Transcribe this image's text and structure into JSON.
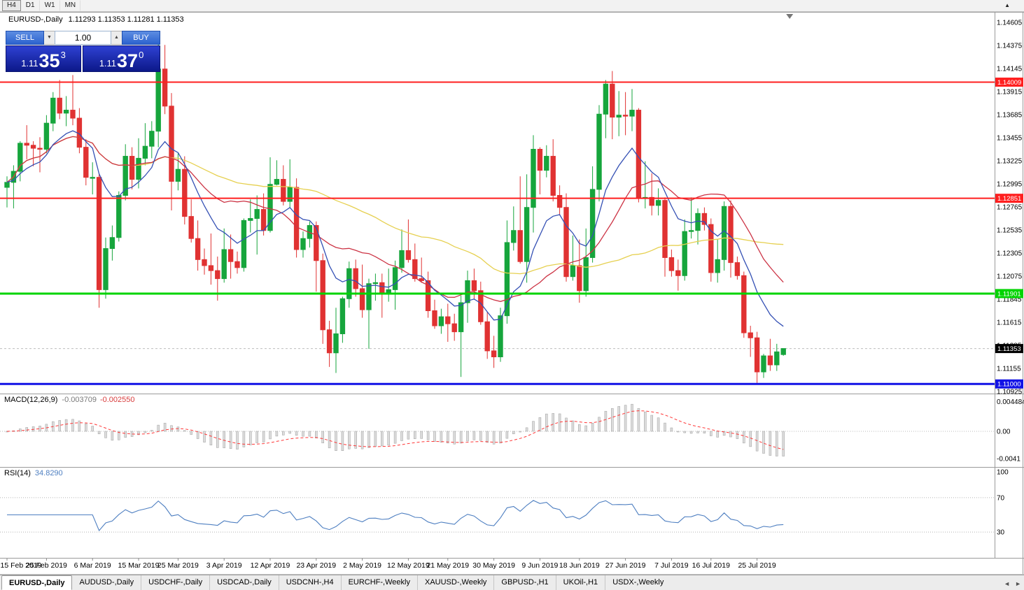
{
  "toolbar": {
    "timeframes": [
      {
        "label": "H4",
        "active": true
      },
      {
        "label": "D1",
        "active": false
      },
      {
        "label": "W1",
        "active": false
      },
      {
        "label": "MN",
        "active": false
      }
    ]
  },
  "icons": {
    "collapse": "▲",
    "spin_down": "▼",
    "spin_up": "▲",
    "tab_prev": "◄",
    "tab_next": "►"
  },
  "chart": {
    "title": "EURUSD-,Daily",
    "ohlc": "1.11293 1.11353 1.11281 1.11353"
  },
  "trade_panel": {
    "sell_label": "SELL",
    "buy_label": "BUY",
    "volume": "1.00",
    "sell_price": {
      "base": "1.11",
      "big": "35",
      "sup": "3"
    },
    "buy_price": {
      "base": "1.11",
      "big": "37",
      "sup": "0"
    }
  },
  "macd": {
    "label": "MACD(12,26,9)",
    "value_main": "-0.003709",
    "value_signal": "-0.002550",
    "scale": [
      "0.004484",
      "0.00",
      "-0.0041"
    ],
    "params": [
      12,
      26,
      9
    ]
  },
  "rsi": {
    "label": "RSI(14)",
    "value": "34.8290",
    "scale": [
      "100",
      "70",
      "30"
    ],
    "levels": [
      70,
      30
    ],
    "period": 14
  },
  "tabs": {
    "items": [
      {
        "label": "EURUSD-,Daily",
        "active": true
      },
      {
        "label": "AUDUSD-,Daily",
        "active": false
      },
      {
        "label": "USDCHF-,Daily",
        "active": false
      },
      {
        "label": "USDCAD-,Daily",
        "active": false
      },
      {
        "label": "USDCNH-,H4",
        "active": false
      },
      {
        "label": "EURCHF-,Weekly",
        "active": false
      },
      {
        "label": "XAUUSD-,Weekly",
        "active": false
      },
      {
        "label": "GBPUSD-,H1",
        "active": false
      },
      {
        "label": "UKOil-,H1",
        "active": false
      },
      {
        "label": "USDX-,Weekly",
        "active": false
      }
    ]
  },
  "colors": {
    "bull": "#16a53c",
    "bear": "#e03232",
    "ma_fast": "#3450b4",
    "ma_mid": "#cc3344",
    "ma_slow": "#e6d050",
    "hline_red": "#ff1f1f",
    "hline_green": "#00d400",
    "hline_blue": "#1212e6",
    "bid_line": "#bdbdbd",
    "bid_badge": "#000000",
    "macd_hist_fill": "#dcdcdc",
    "macd_hist_stroke": "#9f9f9f",
    "macd_signal": "#ff3838",
    "rsi_line": "#4e7fc1",
    "level_dotted": "#b4b4b4",
    "separator": "#9a9a9a"
  },
  "chart_data": {
    "type": "candlestick",
    "symbol": "EURUSD-",
    "timeframe": "Daily",
    "title": "EURUSD-,Daily",
    "y_range": [
      1.10925,
      1.14605
    ],
    "y_ticks": [
      1.14605,
      1.14375,
      1.14145,
      1.13915,
      1.13685,
      1.13455,
      1.13225,
      1.12995,
      1.12765,
      1.12535,
      1.12305,
      1.12075,
      1.11845,
      1.11615,
      1.11385,
      1.11155,
      1.10925
    ],
    "x_tick_labels": [
      "15 Feb 2019",
      "25 Feb 2019",
      "6 Mar 2019",
      "15 Mar 2019",
      "25 Mar 2019",
      "3 Apr 2019",
      "12 Apr 2019",
      "23 Apr 2019",
      "2 May 2019",
      "12 May 2019",
      "21 May 2019",
      "30 May 2019",
      "9 Jun 2019",
      "18 Jun 2019",
      "27 Jun 2019",
      "7 Jul 2019",
      "16 Jul 2019",
      "25 Jul 2019"
    ],
    "x_tick_indices": [
      0,
      6,
      13,
      20,
      26,
      33,
      40,
      47,
      54,
      61,
      67,
      74,
      81,
      87,
      94,
      101,
      107,
      114
    ],
    "hlines": [
      {
        "price": 1.14009,
        "label": "1.14009",
        "color_key": "hline_red",
        "width": 2
      },
      {
        "price": 1.12851,
        "label": "1.12851",
        "color_key": "hline_red",
        "width": 2
      },
      {
        "price": 1.11901,
        "label": "1.11901",
        "color_key": "hline_green",
        "width": 3
      },
      {
        "price": 1.11,
        "label": "1.11000",
        "color_key": "hline_blue",
        "width": 3
      }
    ],
    "bid": {
      "price": 1.11353,
      "label": "1.11353"
    },
    "moving_averages": [
      {
        "name": "ma-fast",
        "type": "ema",
        "period": 10,
        "color_key": "ma_fast"
      },
      {
        "name": "ma-mid",
        "type": "sma",
        "period": 20,
        "color_key": "ma_mid"
      },
      {
        "name": "ma-slow",
        "type": "sma",
        "period": 50,
        "color_key": "ma_slow"
      }
    ],
    "ohlc": [
      [
        1.1296,
        1.1307,
        1.1276,
        1.1301
      ],
      [
        1.1301,
        1.1318,
        1.1275,
        1.1312
      ],
      [
        1.1312,
        1.1342,
        1.1302,
        1.134
      ],
      [
        1.134,
        1.1358,
        1.1324,
        1.1338
      ],
      [
        1.1338,
        1.1342,
        1.1317,
        1.1335
      ],
      [
        1.1335,
        1.1346,
        1.1311,
        1.1334
      ],
      [
        1.1334,
        1.1368,
        1.133,
        1.136
      ],
      [
        1.136,
        1.1391,
        1.1352,
        1.1385
      ],
      [
        1.1385,
        1.1403,
        1.1364,
        1.137
      ],
      [
        1.137,
        1.1387,
        1.1357,
        1.1373
      ],
      [
        1.1373,
        1.1408,
        1.1358,
        1.1365
      ],
      [
        1.1365,
        1.1375,
        1.133,
        1.1336
      ],
      [
        1.1336,
        1.1344,
        1.1298,
        1.1306
      ],
      [
        1.1306,
        1.1321,
        1.1289,
        1.1306
      ],
      [
        1.1306,
        1.131,
        1.1176,
        1.1194
      ],
      [
        1.1194,
        1.1246,
        1.1185,
        1.1235
      ],
      [
        1.1235,
        1.1258,
        1.1223,
        1.1246
      ],
      [
        1.1246,
        1.1292,
        1.1242,
        1.1288
      ],
      [
        1.1288,
        1.1339,
        1.1283,
        1.1327
      ],
      [
        1.1327,
        1.1336,
        1.1294,
        1.1304
      ],
      [
        1.1304,
        1.1345,
        1.1295,
        1.1325
      ],
      [
        1.1325,
        1.136,
        1.1318,
        1.1337
      ],
      [
        1.1337,
        1.1362,
        1.1325,
        1.1352
      ],
      [
        1.1352,
        1.1448,
        1.1336,
        1.1414
      ],
      [
        1.1414,
        1.1438,
        1.1369,
        1.1377
      ],
      [
        1.1377,
        1.139,
        1.1273,
        1.1302
      ],
      [
        1.1302,
        1.133,
        1.1293,
        1.1314
      ],
      [
        1.1314,
        1.1327,
        1.1259,
        1.1267
      ],
      [
        1.1267,
        1.1284,
        1.1241,
        1.1245
      ],
      [
        1.1245,
        1.1263,
        1.1213,
        1.1224
      ],
      [
        1.1224,
        1.1235,
        1.1209,
        1.1218
      ],
      [
        1.1218,
        1.125,
        1.1199,
        1.1213
      ],
      [
        1.1213,
        1.1227,
        1.1183,
        1.1205
      ],
      [
        1.1205,
        1.1255,
        1.1201,
        1.1234
      ],
      [
        1.1234,
        1.1249,
        1.1205,
        1.1222
      ],
      [
        1.1222,
        1.1232,
        1.121,
        1.1216
      ],
      [
        1.1216,
        1.1265,
        1.1212,
        1.1263
      ],
      [
        1.1263,
        1.1284,
        1.1251,
        1.1265
      ],
      [
        1.1265,
        1.1288,
        1.1229,
        1.1274
      ],
      [
        1.1274,
        1.129,
        1.1248,
        1.1253
      ],
      [
        1.1253,
        1.1326,
        1.1251,
        1.1299
      ],
      [
        1.1299,
        1.1323,
        1.1298,
        1.1304
      ],
      [
        1.1304,
        1.1318,
        1.1278,
        1.1282
      ],
      [
        1.1282,
        1.1324,
        1.1276,
        1.1296
      ],
      [
        1.1296,
        1.1305,
        1.1226,
        1.1234
      ],
      [
        1.1234,
        1.1252,
        1.1226,
        1.1245
      ],
      [
        1.1245,
        1.1262,
        1.1236,
        1.1258
      ],
      [
        1.1258,
        1.1262,
        1.1192,
        1.1223
      ],
      [
        1.1223,
        1.123,
        1.114,
        1.1154
      ],
      [
        1.1154,
        1.1163,
        1.1117,
        1.1131
      ],
      [
        1.1131,
        1.1176,
        1.1111,
        1.115
      ],
      [
        1.115,
        1.1187,
        1.1141,
        1.1185
      ],
      [
        1.1185,
        1.1222,
        1.1176,
        1.1215
      ],
      [
        1.1215,
        1.1224,
        1.1187,
        1.1195
      ],
      [
        1.1195,
        1.1219,
        1.1166,
        1.1174
      ],
      [
        1.1174,
        1.1205,
        1.1135,
        1.12
      ],
      [
        1.12,
        1.121,
        1.1183,
        1.1201
      ],
      [
        1.1201,
        1.121,
        1.1166,
        1.1191
      ],
      [
        1.1191,
        1.1215,
        1.1182,
        1.1194
      ],
      [
        1.1194,
        1.1223,
        1.1174,
        1.1216
      ],
      [
        1.1216,
        1.1254,
        1.1211,
        1.1233
      ],
      [
        1.1233,
        1.1264,
        1.1221,
        1.1224
      ],
      [
        1.1224,
        1.124,
        1.1202,
        1.1205
      ],
      [
        1.1205,
        1.1226,
        1.1201,
        1.1203
      ],
      [
        1.1203,
        1.1212,
        1.1166,
        1.1173
      ],
      [
        1.1173,
        1.1184,
        1.1155,
        1.1158
      ],
      [
        1.1158,
        1.1175,
        1.115,
        1.1167
      ],
      [
        1.1167,
        1.118,
        1.1142,
        1.116
      ],
      [
        1.116,
        1.117,
        1.1143,
        1.1152
      ],
      [
        1.1152,
        1.1188,
        1.1107,
        1.1181
      ],
      [
        1.1181,
        1.1213,
        1.1161,
        1.1203
      ],
      [
        1.1203,
        1.1215,
        1.1184,
        1.1193
      ],
      [
        1.1193,
        1.1202,
        1.1159,
        1.1162
      ],
      [
        1.1162,
        1.1172,
        1.1125,
        1.1133
      ],
      [
        1.1133,
        1.1148,
        1.1116,
        1.1127
      ],
      [
        1.1127,
        1.1176,
        1.1122,
        1.1168
      ],
      [
        1.1168,
        1.1263,
        1.116,
        1.1241
      ],
      [
        1.1241,
        1.1277,
        1.1233,
        1.1253
      ],
      [
        1.1253,
        1.1307,
        1.122,
        1.1222
      ],
      [
        1.1222,
        1.1309,
        1.1201,
        1.1276
      ],
      [
        1.1276,
        1.1348,
        1.1251,
        1.1334
      ],
      [
        1.1334,
        1.1336,
        1.1289,
        1.1313
      ],
      [
        1.1313,
        1.1338,
        1.1306,
        1.1327
      ],
      [
        1.1327,
        1.1344,
        1.1282,
        1.1288
      ],
      [
        1.1288,
        1.1298,
        1.1268,
        1.1276
      ],
      [
        1.1276,
        1.129,
        1.1202,
        1.1207
      ],
      [
        1.1207,
        1.1248,
        1.1203,
        1.1218
      ],
      [
        1.1218,
        1.1244,
        1.1181,
        1.1193
      ],
      [
        1.1193,
        1.1255,
        1.1187,
        1.1226
      ],
      [
        1.1226,
        1.1317,
        1.1221,
        1.1294
      ],
      [
        1.1294,
        1.1378,
        1.1282,
        1.1369
      ],
      [
        1.1369,
        1.1403,
        1.1345,
        1.1399
      ],
      [
        1.1399,
        1.1412,
        1.1344,
        1.1366
      ],
      [
        1.1366,
        1.1392,
        1.1347,
        1.1368
      ],
      [
        1.1368,
        1.1391,
        1.1348,
        1.1367
      ],
      [
        1.1367,
        1.1394,
        1.1352,
        1.1373
      ],
      [
        1.1373,
        1.1375,
        1.1281,
        1.1285
      ],
      [
        1.1285,
        1.1322,
        1.1275,
        1.1286
      ],
      [
        1.1286,
        1.131,
        1.1268,
        1.1278
      ],
      [
        1.1278,
        1.1295,
        1.1268,
        1.1283
      ],
      [
        1.1283,
        1.1286,
        1.1207,
        1.1226
      ],
      [
        1.1226,
        1.1234,
        1.1207,
        1.1213
      ],
      [
        1.1213,
        1.1224,
        1.1193,
        1.1208
      ],
      [
        1.1208,
        1.1264,
        1.1203,
        1.1252
      ],
      [
        1.1252,
        1.1286,
        1.1245,
        1.1253
      ],
      [
        1.1253,
        1.1275,
        1.1239,
        1.127
      ],
      [
        1.127,
        1.1276,
        1.1253,
        1.1259
      ],
      [
        1.1259,
        1.1265,
        1.1202,
        1.1211
      ],
      [
        1.1211,
        1.1244,
        1.1201,
        1.1224
      ],
      [
        1.1224,
        1.1282,
        1.1213,
        1.1277
      ],
      [
        1.1277,
        1.1283,
        1.1206,
        1.1221
      ],
      [
        1.1221,
        1.1227,
        1.1204,
        1.1208
      ],
      [
        1.1208,
        1.1212,
        1.1146,
        1.1151
      ],
      [
        1.1151,
        1.1158,
        1.1127,
        1.1146
      ],
      [
        1.1146,
        1.1152,
        1.1101,
        1.1112
      ],
      [
        1.1112,
        1.113,
        1.1106,
        1.1128
      ],
      [
        1.1128,
        1.1145,
        1.1113,
        1.1119
      ],
      [
        1.1119,
        1.114,
        1.1113,
        1.1132
      ],
      [
        1.11293,
        1.11353,
        1.11281,
        1.11353
      ]
    ]
  }
}
